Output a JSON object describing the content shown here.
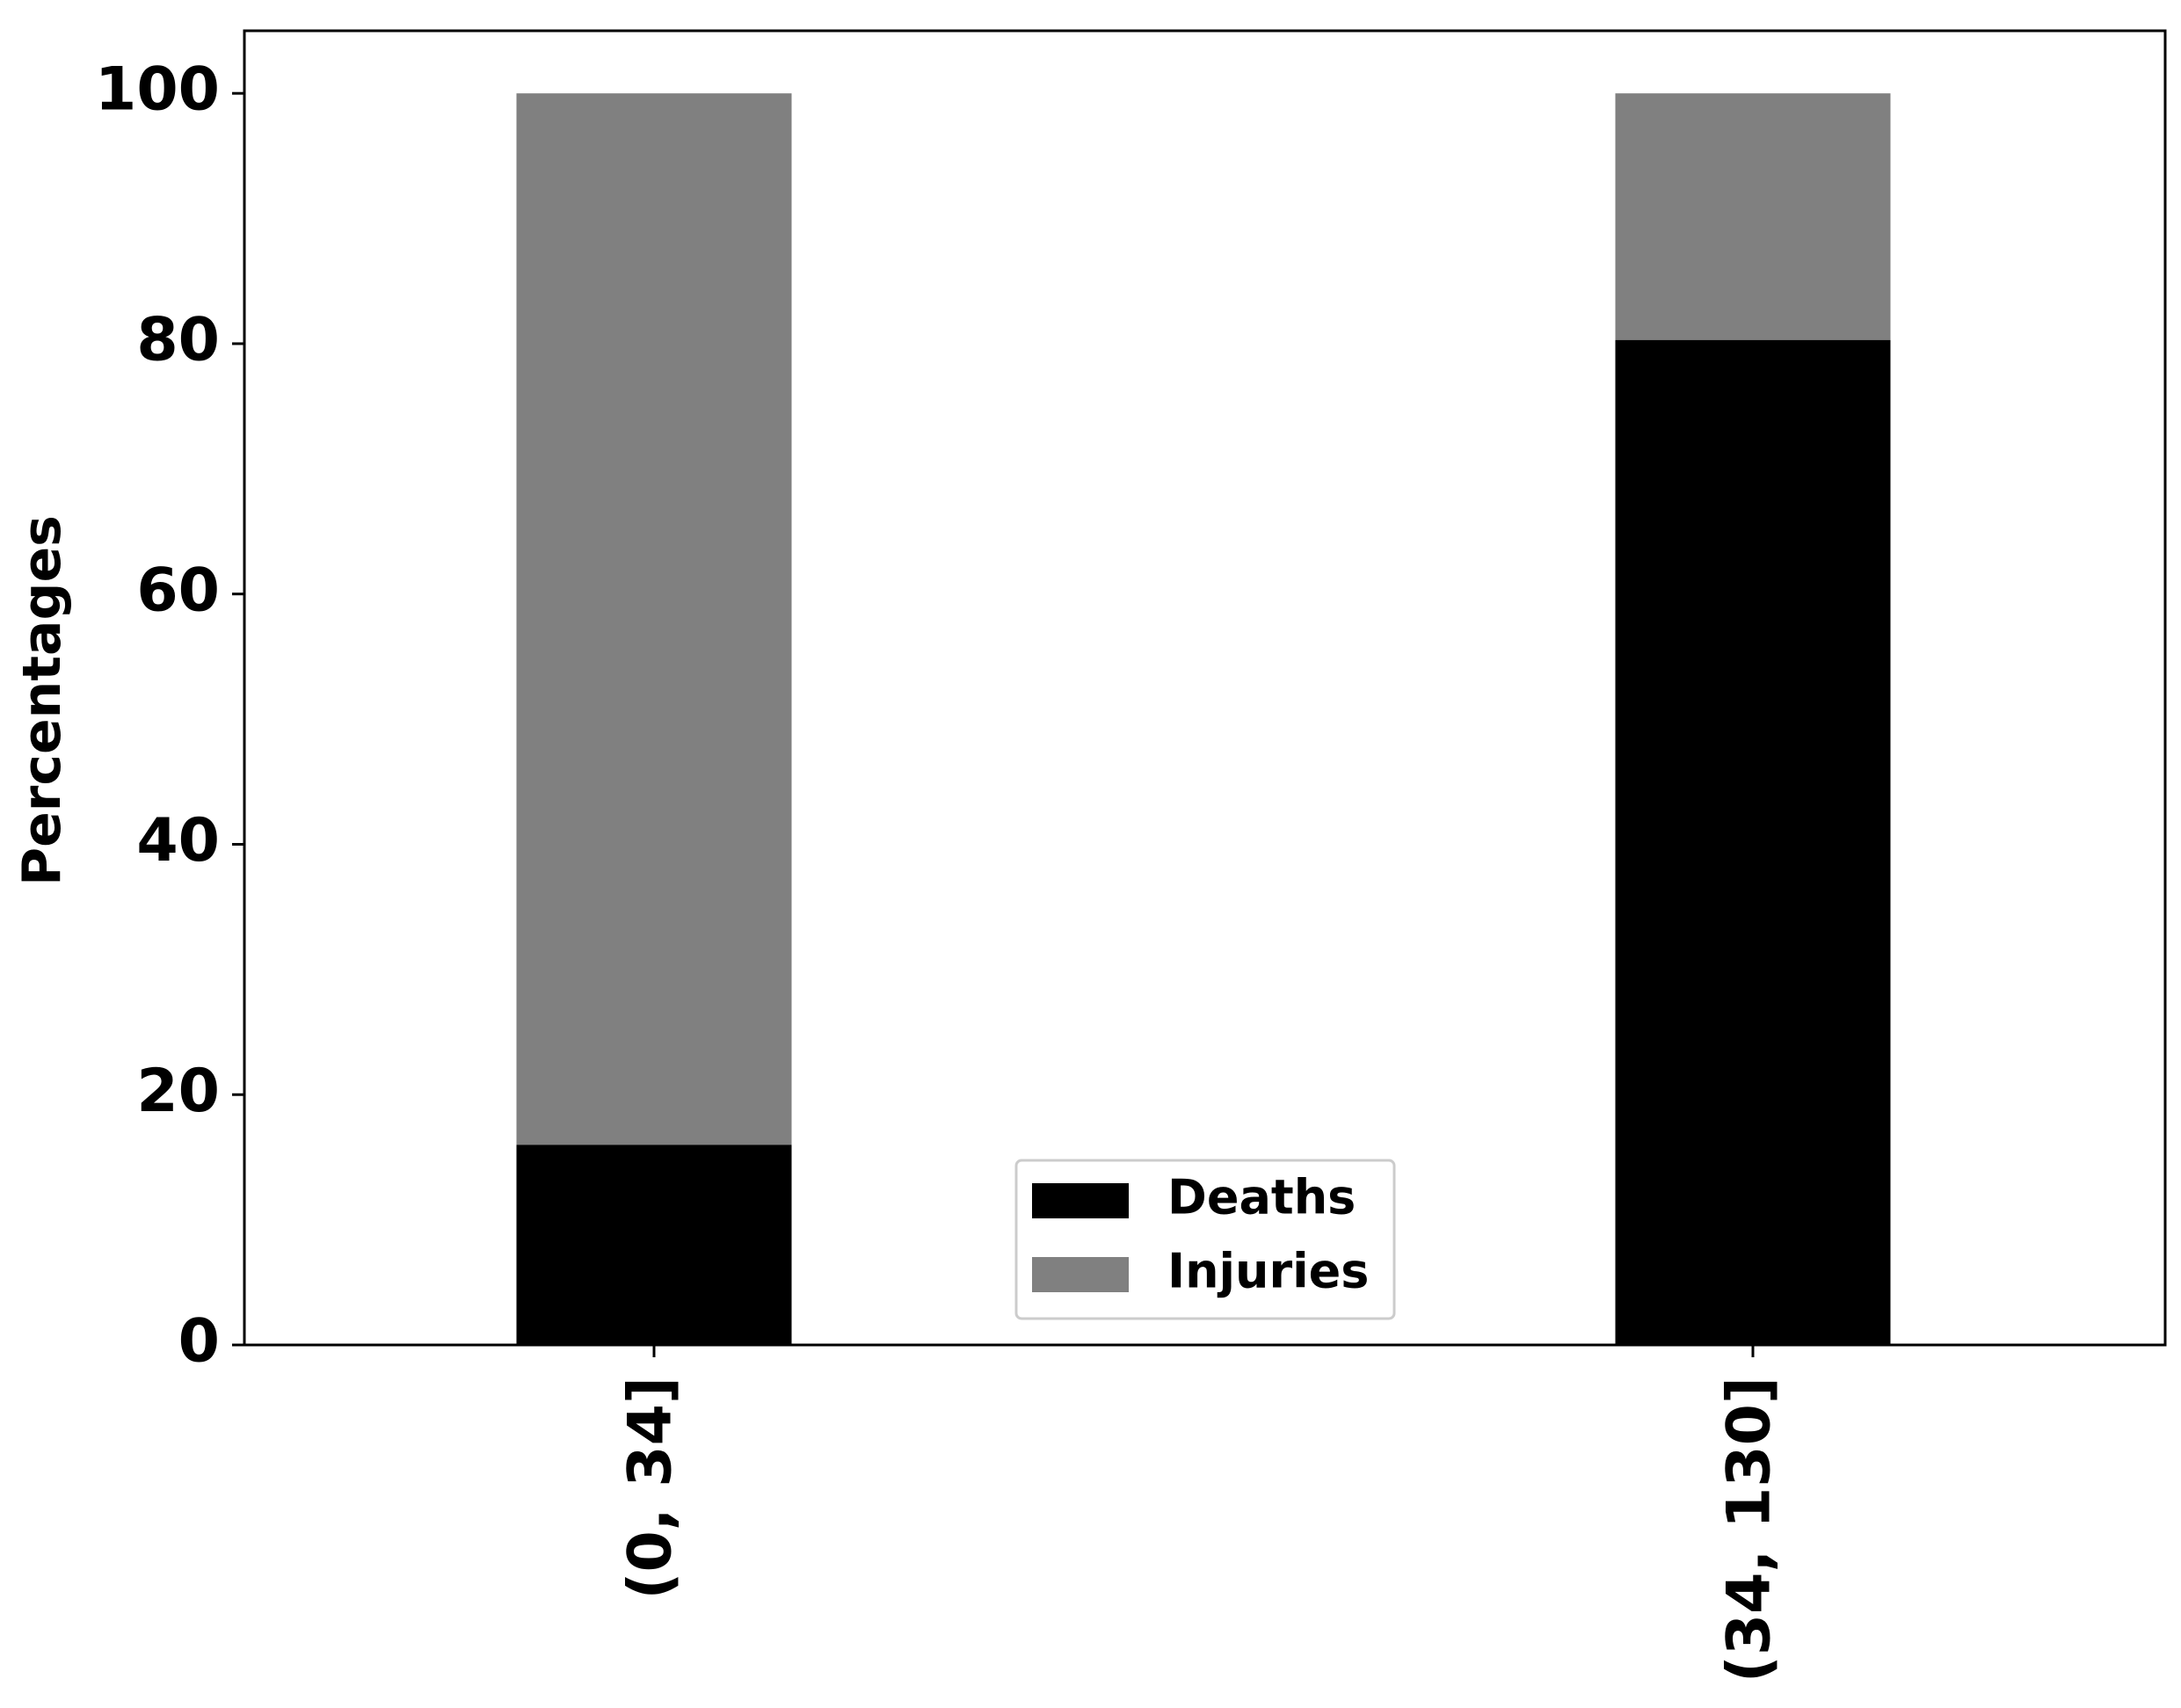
{
  "chart_data": {
    "type": "bar",
    "stacked": true,
    "categories": [
      "(0, 34]",
      "(34, 130]"
    ],
    "series": [
      {
        "name": "Deaths",
        "values": [
          16,
          80.3
        ],
        "color": "#000000"
      },
      {
        "name": "Injuries",
        "values": [
          84,
          19.7
        ],
        "color": "#808080"
      }
    ],
    "title": "",
    "xlabel": "",
    "ylabel": "Percentages",
    "ylim": [
      0,
      105
    ],
    "yticks": [
      "0",
      "20",
      "40",
      "60",
      "80",
      "100"
    ],
    "grid": false,
    "legend_placement": "lower-center",
    "xtick_rotation": "vertical"
  }
}
